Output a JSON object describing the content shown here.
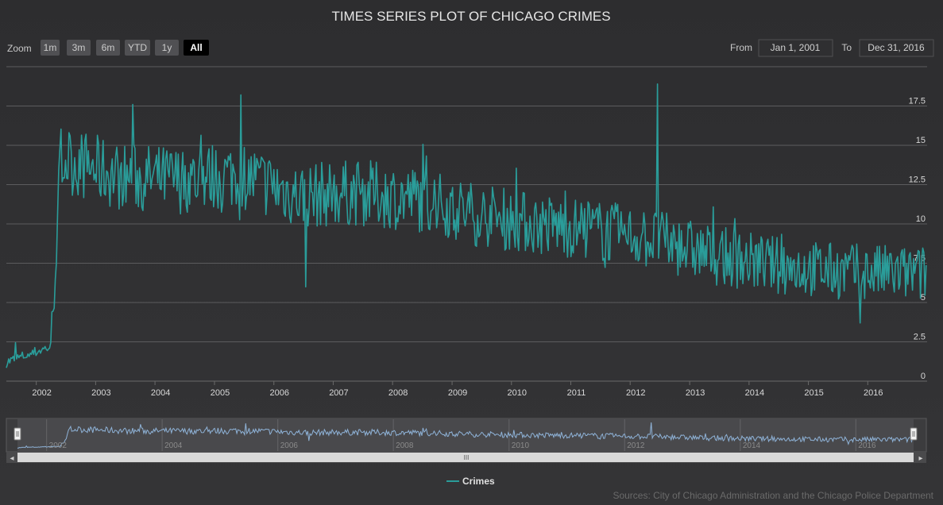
{
  "chart_data": {
    "type": "line",
    "title": "TIMES SERIES PLOT OF CHICAGO CRIMES",
    "source": "Sources: City of Chicago Administration and the Chicago Police Department",
    "series": [
      {
        "name": "Crimes",
        "color": "#2a9d9a"
      }
    ],
    "xlim": [
      "2001-07-01",
      "2016-12-31"
    ],
    "ylim": [
      0,
      20
    ],
    "x_ticks": [
      "2002",
      "2003",
      "2004",
      "2005",
      "2006",
      "2007",
      "2008",
      "2009",
      "2010",
      "2011",
      "2012",
      "2013",
      "2014",
      "2015",
      "2016"
    ],
    "y_ticks": [
      "0",
      "2.5",
      "5",
      "7.5",
      "10",
      "12.5",
      "15",
      "17.5"
    ],
    "navigator_ticks": [
      "2002",
      "2004",
      "2006",
      "2008",
      "2010",
      "2012",
      "2014",
      "2016"
    ],
    "grid": true,
    "legend": "bottom-center",
    "approx_weekly_level": [
      {
        "x": "2001-07",
        "y": 1.2
      },
      {
        "x": "2002-04",
        "y": 2.2
      },
      {
        "x": "2002-06",
        "y": 14.2
      },
      {
        "x": "2003-06",
        "y": 13.0
      },
      {
        "x": "2004-06",
        "y": 12.8
      },
      {
        "x": "2005-06",
        "y": 13.2
      },
      {
        "x": "2006-06",
        "y": 11.8
      },
      {
        "x": "2007-06",
        "y": 12.0
      },
      {
        "x": "2008-06",
        "y": 11.6
      },
      {
        "x": "2009-06",
        "y": 10.6
      },
      {
        "x": "2010-06",
        "y": 10.0
      },
      {
        "x": "2011-06",
        "y": 9.6
      },
      {
        "x": "2012-06",
        "y": 9.0
      },
      {
        "x": "2013-06",
        "y": 8.0
      },
      {
        "x": "2014-06",
        "y": 7.4
      },
      {
        "x": "2015-06",
        "y": 7.0
      },
      {
        "x": "2016-12",
        "y": 6.8
      }
    ],
    "notable_points": [
      {
        "x": "2003-08",
        "y": 17.6
      },
      {
        "x": "2005-06",
        "y": 18.2
      },
      {
        "x": "2006-07",
        "y": 6.0
      },
      {
        "x": "2012-06",
        "y": 18.9
      },
      {
        "x": "2015-11",
        "y": 3.7
      }
    ]
  },
  "range_selector": {
    "zoom_label": "Zoom",
    "buttons": [
      "1m",
      "3m",
      "6m",
      "YTD",
      "1y",
      "All"
    ],
    "selected": "All",
    "from_label": "From",
    "from_value": "Jan 1, 2001",
    "to_label": "To",
    "to_value": "Dec 31, 2016"
  },
  "scrollbar": {
    "thumb_glyph": "III",
    "left_arrow": "◂",
    "right_arrow": "▸"
  }
}
